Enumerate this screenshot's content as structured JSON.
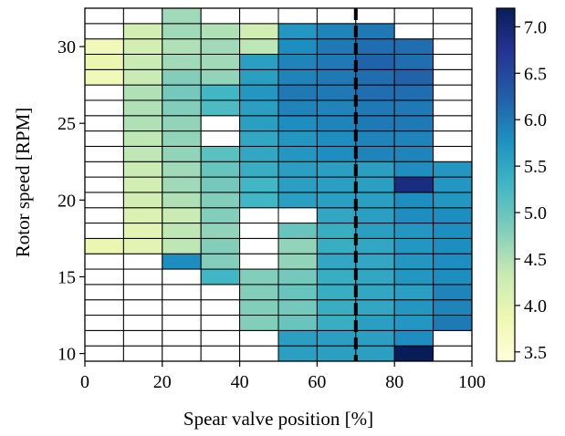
{
  "chart_data": {
    "type": "heatmap",
    "title": "",
    "xlabel": "Spear valve position [%]",
    "ylabel": "Rotor speed [RPM]",
    "xlim": [
      0,
      100
    ],
    "ylim": [
      9.5,
      32.5
    ],
    "x_ticks": [
      0,
      20,
      40,
      60,
      80,
      100
    ],
    "x_tick_labels": [
      "0",
      "20",
      "40",
      "60",
      "80",
      "100"
    ],
    "y_ticks": [
      10,
      15,
      20,
      25,
      30
    ],
    "y_tick_labels": [
      "10",
      "15",
      "20",
      "25",
      "30"
    ],
    "x_bin_edges": [
      0,
      10,
      20,
      30,
      40,
      50,
      60,
      70,
      80,
      90,
      100
    ],
    "y_bins": [
      10,
      11,
      12,
      13,
      14,
      15,
      16,
      17,
      18,
      19,
      20,
      21,
      22,
      23,
      24,
      25,
      26,
      27,
      28,
      29,
      30,
      31,
      32
    ],
    "cell_height_rpm": 1,
    "vertical_line": {
      "x": 70,
      "style": "dashed",
      "color": "#000000"
    },
    "grid": false,
    "colorbar": {
      "label": "",
      "min": 3.4,
      "max": 7.2,
      "ticks": [
        3.5,
        4.0,
        4.5,
        5.0,
        5.5,
        6.0,
        6.5,
        7.0
      ],
      "tick_labels": [
        "3.5",
        "4.0",
        "4.5",
        "5.0",
        "5.5",
        "6.0",
        "6.5",
        "7.0"
      ],
      "colormap": "YlGnBu",
      "stops": [
        "#ffffd9",
        "#edf8b1",
        "#c7e9b4",
        "#7fcdbb",
        "#41b6c4",
        "#1d91c0",
        "#225ea8",
        "#253494",
        "#081d58"
      ]
    },
    "values": [
      [
        null,
        null,
        null,
        null,
        null,
        5.6,
        5.6,
        5.6,
        7.2,
        null
      ],
      [
        null,
        null,
        null,
        null,
        null,
        5.6,
        5.6,
        5.6,
        5.8,
        null
      ],
      [
        null,
        null,
        null,
        null,
        4.8,
        5.0,
        5.4,
        5.6,
        5.7,
        6.0
      ],
      [
        null,
        null,
        null,
        null,
        4.8,
        4.9,
        5.4,
        5.5,
        5.7,
        5.9
      ],
      [
        null,
        null,
        null,
        null,
        4.8,
        5.0,
        5.4,
        5.5,
        5.6,
        5.9
      ],
      [
        null,
        null,
        null,
        5.3,
        4.8,
        4.9,
        5.4,
        5.5,
        5.7,
        5.8
      ],
      [
        null,
        null,
        5.8,
        4.8,
        null,
        4.7,
        5.5,
        5.5,
        5.7,
        5.8
      ],
      [
        3.9,
        4.0,
        4.4,
        4.8,
        null,
        4.7,
        5.4,
        5.5,
        5.7,
        5.8
      ],
      [
        null,
        4.0,
        4.4,
        4.7,
        null,
        5.0,
        5.4,
        5.6,
        5.7,
        5.8
      ],
      [
        null,
        4.1,
        4.3,
        4.8,
        null,
        null,
        5.5,
        5.6,
        5.8,
        5.8
      ],
      [
        null,
        4.2,
        4.5,
        4.8,
        5.3,
        5.6,
        5.6,
        5.6,
        5.8,
        5.7
      ],
      [
        null,
        4.2,
        4.6,
        4.9,
        5.3,
        5.6,
        5.6,
        5.6,
        6.9,
        5.7
      ],
      [
        null,
        4.3,
        4.6,
        5.0,
        5.4,
        5.6,
        5.6,
        5.6,
        5.8,
        5.7
      ],
      [
        null,
        4.4,
        4.7,
        5.1,
        5.5,
        5.7,
        5.8,
        5.9,
        5.9,
        null
      ],
      [
        null,
        4.4,
        4.7,
        null,
        5.5,
        5.7,
        5.8,
        5.9,
        5.9,
        null
      ],
      [
        null,
        4.5,
        4.7,
        null,
        5.6,
        5.8,
        5.9,
        6.0,
        6.0,
        null
      ],
      [
        null,
        4.5,
        4.8,
        5.2,
        5.6,
        5.9,
        5.9,
        6.0,
        6.0,
        null
      ],
      [
        null,
        4.5,
        4.9,
        5.3,
        5.7,
        6.0,
        6.0,
        6.1,
        6.1,
        null
      ],
      [
        3.8,
        4.3,
        4.8,
        4.7,
        5.6,
        5.9,
        6.0,
        6.1,
        6.2,
        null
      ],
      [
        3.9,
        4.3,
        4.6,
        4.6,
        5.6,
        5.9,
        6.0,
        6.2,
        6.1,
        null
      ],
      [
        3.8,
        4.2,
        4.5,
        4.6,
        4.4,
        5.8,
        6.0,
        6.1,
        6.1,
        null
      ],
      [
        null,
        4.2,
        4.6,
        4.5,
        4.2,
        5.7,
        5.9,
        6.0,
        null,
        null
      ],
      [
        null,
        null,
        4.6,
        null,
        null,
        null,
        null,
        null,
        null,
        null
      ]
    ]
  }
}
